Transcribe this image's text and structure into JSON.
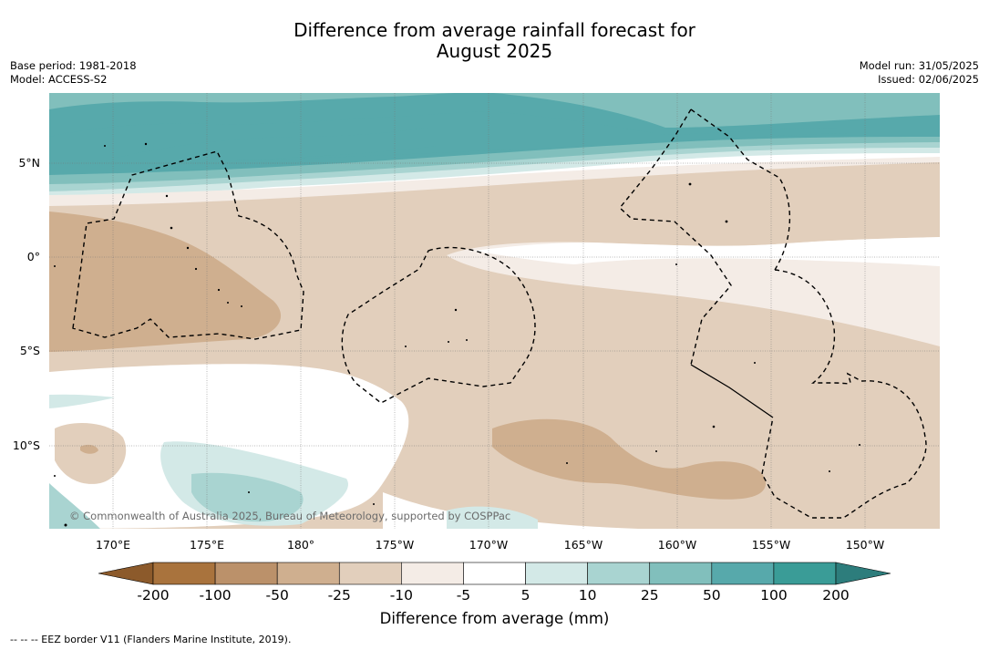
{
  "title": {
    "line1": "Difference from average rainfall forecast for",
    "line2": "August 2025"
  },
  "meta_left": {
    "base_period": "Base period: 1981-2018",
    "model": "Model: ACCESS-S2"
  },
  "meta_right": {
    "model_run": "Model run: 31/05/2025",
    "issued": "Issued: 02/06/2025"
  },
  "map": {
    "lat_labels": [
      "5°N",
      "0°",
      "5°S",
      "10°S"
    ],
    "lon_labels": [
      "170°E",
      "175°E",
      "180°",
      "175°W",
      "170°W",
      "165°W",
      "160°W",
      "155°W",
      "150°W"
    ],
    "copyright": "© Commonwealth of Australia 2025, Bureau of Meteorology, supported by COSPPac"
  },
  "colorbar": {
    "ticks": [
      "-200",
      "-100",
      "-50",
      "-25",
      "-10",
      "-5",
      "5",
      "10",
      "25",
      "50",
      "100",
      "200"
    ],
    "colors": [
      "#a9733d",
      "#bb916a",
      "#cfaf8f",
      "#e2cfbc",
      "#f4ece6",
      "#ffffff",
      "#d3e9e7",
      "#a9d4d1",
      "#81bfbc",
      "#57a9ab",
      "#3a9c97"
    ],
    "low_extend_color": "#8c5a2b",
    "high_extend_color": "#2d7d7c",
    "label": "Difference from average (mm)"
  },
  "footnote": "--  --  -- EEZ border V11 (Flanders Marine Institute, 2019)."
}
